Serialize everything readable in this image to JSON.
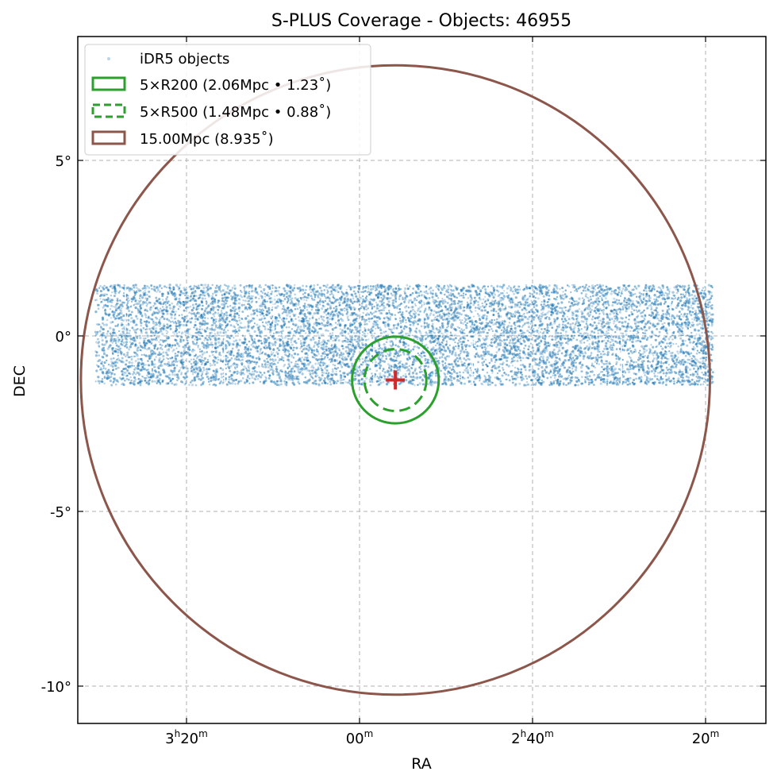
{
  "chart_data": {
    "type": "scatter",
    "title": "S-PLUS Coverage - Objects: 46955",
    "xlabel": "RA",
    "ylabel": "DEC",
    "x_units": "hour angle",
    "x_inverted": true,
    "xlim": [
      "3h30m",
      "2h12m"
    ],
    "ylim": [
      -11,
      8.5
    ],
    "grid": true,
    "legend_position": "top-left",
    "object_count": 46955,
    "x_ticks": [
      {
        "label_h": "3",
        "label_m": "20"
      },
      {
        "label_h": "",
        "label_m": "00"
      },
      {
        "label_h": "2",
        "label_m": "40"
      },
      {
        "label_h": "",
        "label_m": "20"
      }
    ],
    "y_ticks": [
      "5°",
      "0°",
      "-5°",
      "-10°"
    ],
    "stripe": {
      "ra_range": [
        "3h28m",
        "2h18m"
      ],
      "dec_range": [
        -1.4,
        1.45
      ],
      "label": "iDR5 objects",
      "color": "#1f77b4"
    },
    "center": {
      "ra": "2h54m",
      "dec": -1.25,
      "color": "#d62728"
    },
    "circles": [
      {
        "label": "5×R200 (2.06Mpc • 1.23˚)",
        "radius_deg": 1.23,
        "style": "solid",
        "color": "#2ca02c"
      },
      {
        "label": "5×R500 (1.48Mpc • 0.88˚)",
        "radius_deg": 0.88,
        "style": "dashed",
        "color": "#2ca02c"
      },
      {
        "label": "15.00Mpc (8.935˚)",
        "radius_deg": 8.935,
        "style": "solid",
        "color": "#8c564b"
      }
    ]
  },
  "legend": {
    "items": [
      {
        "label": "iDR5 objects"
      },
      {
        "label": "5×R200 (2.06Mpc • 1.23˚)"
      },
      {
        "label": "5×R500 (1.48Mpc • 0.88˚)"
      },
      {
        "label": "15.00Mpc (8.935˚)"
      }
    ]
  }
}
